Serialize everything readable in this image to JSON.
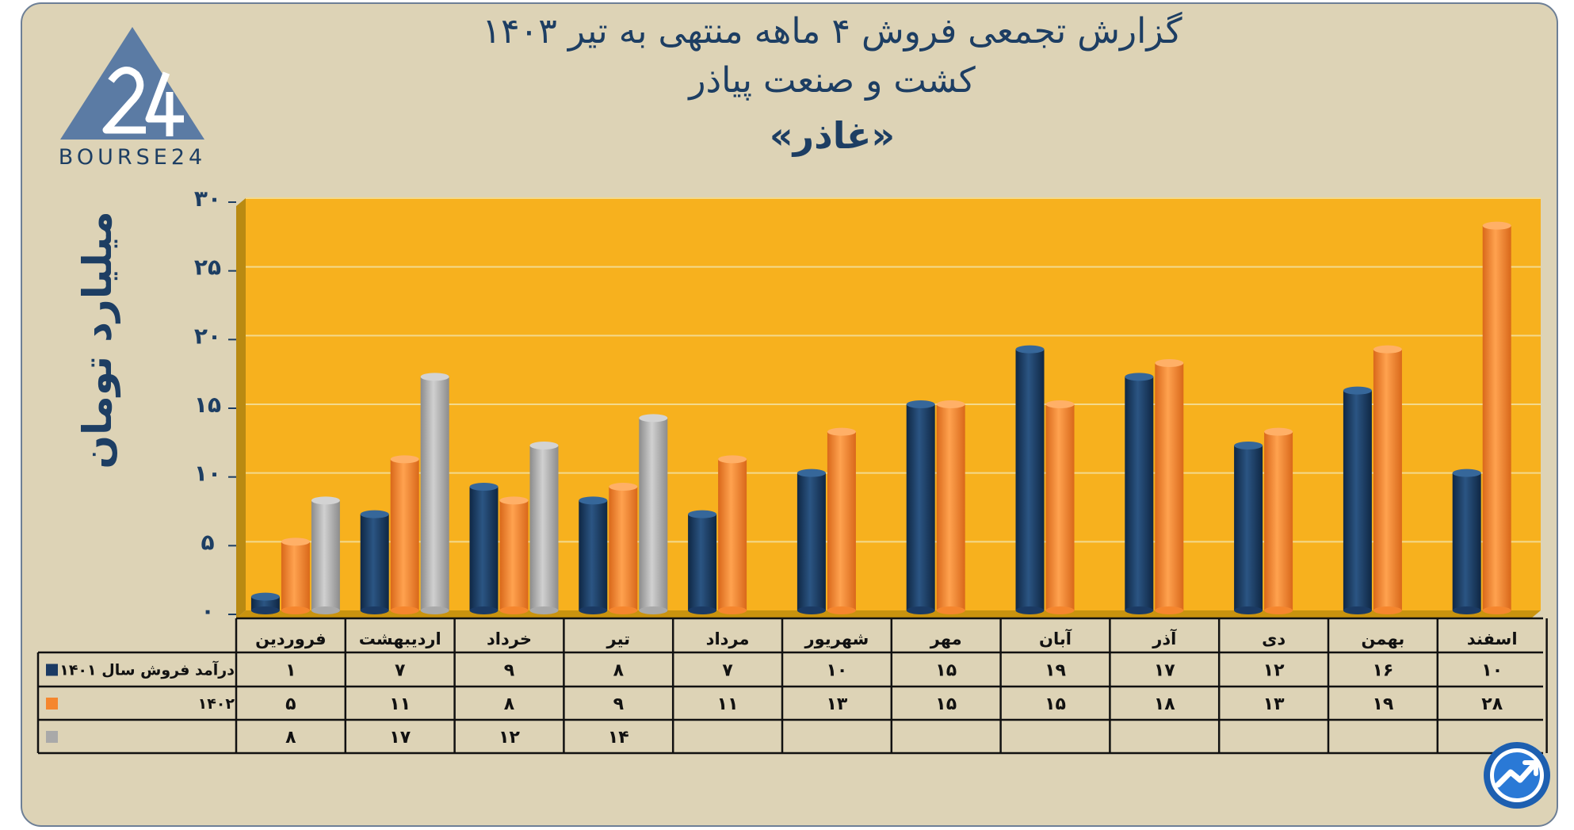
{
  "header": {
    "title_line1": "گزارش تجمعی فروش ۴ ماهه منتهی به تیر ۱۴۰۳",
    "title_line2": "کشت و صنعت پیاذر",
    "title_line3": "«غاذر»"
  },
  "logo": {
    "text": "BOURSE24",
    "icon": "bourse24-triangle-logo-icon"
  },
  "corner_badge": {
    "icon": "trend-arrow-badge-icon"
  },
  "colors": {
    "panel": "#ddd3b6",
    "plot": "#f7b11e",
    "series1": "#1b3a63",
    "series2": "#f5862e",
    "series3": "#a9a9a9",
    "text": "#1d3e63"
  },
  "chart_data": {
    "type": "bar",
    "title": "گزارش تجمعی فروش ۴ ماهه منتهی به تیر ۱۴۰۳",
    "ylabel": "میلیارد تومان",
    "xlabel": "",
    "ylim": [
      0,
      30
    ],
    "yticks": [
      0,
      5,
      10,
      15,
      20,
      25,
      30
    ],
    "ytick_labels": [
      "۰",
      "۵",
      "۱۰",
      "۱۵",
      "۲۰",
      "۲۵",
      "۳۰"
    ],
    "grid": true,
    "categories": [
      "فروردین",
      "اردیبهشت",
      "خرداد",
      "تیر",
      "مرداد",
      "شهریور",
      "مهر",
      "آبان",
      "آذر",
      "دی",
      "بهمن",
      "اسفند"
    ],
    "series": [
      {
        "name": "درآمد فروش سال ۱۴۰۱",
        "values": [
          1,
          7,
          9,
          8,
          7,
          10,
          15,
          19,
          17,
          12,
          16,
          10
        ],
        "labels": [
          "۱",
          "۷",
          "۹",
          "۸",
          "۷",
          "۱۰",
          "۱۵",
          "۱۹",
          "۱۷",
          "۱۲",
          "۱۶",
          "۱۰"
        ]
      },
      {
        "name": "۱۴۰۲",
        "values": [
          5,
          11,
          8,
          9,
          11,
          13,
          15,
          15,
          18,
          13,
          19,
          28
        ],
        "labels": [
          "۵",
          "۱۱",
          "۸",
          "۹",
          "۱۱",
          "۱۳",
          "۱۵",
          "۱۵",
          "۱۸",
          "۱۳",
          "۱۹",
          "۲۸"
        ]
      },
      {
        "name": "",
        "values": [
          8,
          17,
          12,
          14,
          null,
          null,
          null,
          null,
          null,
          null,
          null,
          null
        ],
        "labels": [
          "۸",
          "۱۷",
          "۱۲",
          "۱۴",
          "",
          "",
          "",
          "",
          "",
          "",
          "",
          ""
        ]
      }
    ]
  }
}
